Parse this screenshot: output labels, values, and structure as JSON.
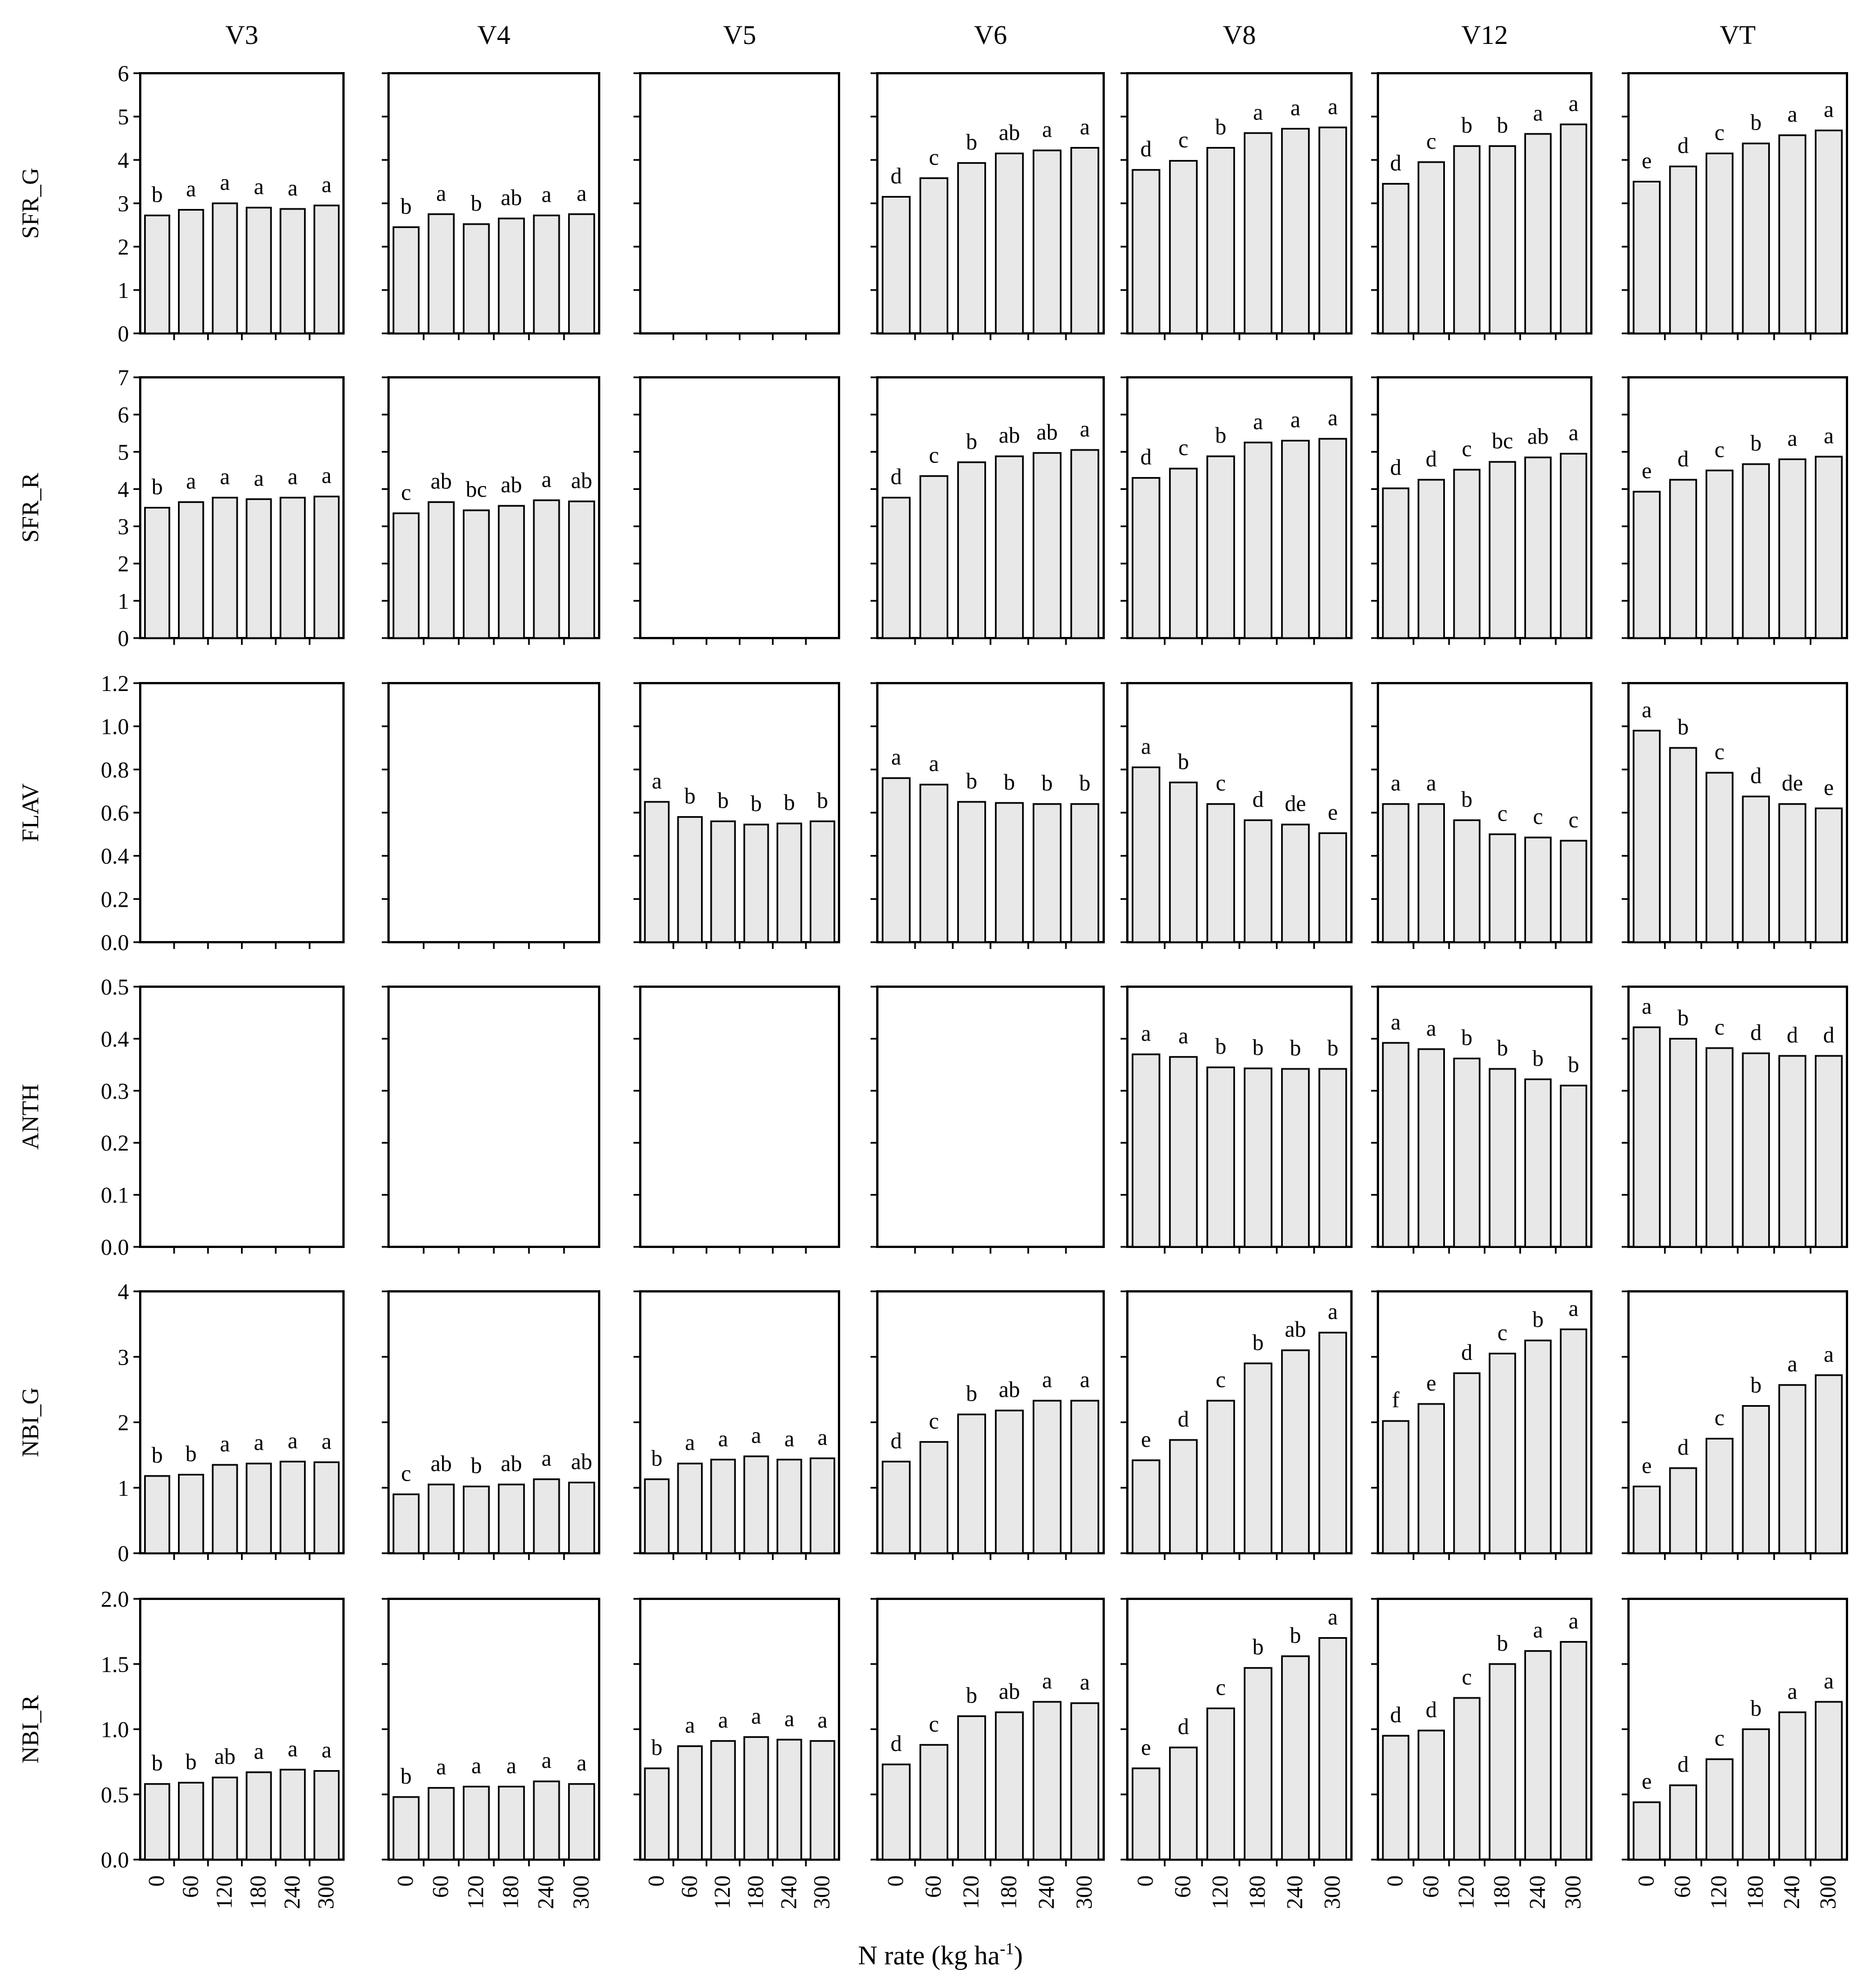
{
  "chart_data": {
    "type": "bar",
    "layout": "small-multiples grid (rows = indices, columns = growth stages)",
    "columns": [
      "V3",
      "V4",
      "V5",
      "V6",
      "V8",
      "V12",
      "VT"
    ],
    "categories": [
      "0",
      "60",
      "120",
      "180",
      "240",
      "300"
    ],
    "xlabel": "N rate (kg ha",
    "xlabel_sup": "-1",
    "xlabel_suffix": ")",
    "bar_color": "#e8e8e8",
    "rows": [
      {
        "label": "SFR_G",
        "ylim": [
          0,
          6
        ],
        "yticks": [
          "0",
          "1",
          "2",
          "3",
          "4",
          "5",
          "6"
        ],
        "panels": [
          {
            "values": [
              2.72,
              2.85,
              3.0,
              2.9,
              2.87,
              2.95
            ],
            "letters": [
              "b",
              "a",
              "a",
              "a",
              "a",
              "a"
            ]
          },
          {
            "values": [
              2.45,
              2.75,
              2.52,
              2.65,
              2.72,
              2.75
            ],
            "letters": [
              "b",
              "a",
              "b",
              "ab",
              "a",
              "a"
            ]
          },
          null,
          {
            "values": [
              3.15,
              3.58,
              3.93,
              4.15,
              4.22,
              4.28
            ],
            "letters": [
              "d",
              "c",
              "b",
              "ab",
              "a",
              "a"
            ]
          },
          {
            "values": [
              3.77,
              3.98,
              4.28,
              4.62,
              4.72,
              4.75
            ],
            "letters": [
              "d",
              "c",
              "b",
              "a",
              "a",
              "a"
            ]
          },
          {
            "values": [
              3.45,
              3.95,
              4.32,
              4.32,
              4.6,
              4.82
            ],
            "letters": [
              "d",
              "c",
              "b",
              "b",
              "a",
              "a"
            ]
          },
          {
            "values": [
              3.5,
              3.85,
              4.15,
              4.38,
              4.57,
              4.68
            ],
            "letters": [
              "e",
              "d",
              "c",
              "b",
              "a",
              "a"
            ]
          }
        ]
      },
      {
        "label": "SFR_R",
        "ylim": [
          0,
          7
        ],
        "yticks": [
          "0",
          "1",
          "2",
          "3",
          "4",
          "5",
          "6",
          "7"
        ],
        "panels": [
          {
            "values": [
              3.5,
              3.65,
              3.77,
              3.73,
              3.77,
              3.8
            ],
            "letters": [
              "b",
              "a",
              "a",
              "a",
              "a",
              "a"
            ]
          },
          {
            "values": [
              3.35,
              3.65,
              3.43,
              3.55,
              3.7,
              3.67
            ],
            "letters": [
              "c",
              "ab",
              "bc",
              "ab",
              "a",
              "ab"
            ]
          },
          null,
          {
            "values": [
              3.77,
              4.35,
              4.72,
              4.88,
              4.97,
              5.05
            ],
            "letters": [
              "d",
              "c",
              "b",
              "ab",
              "ab",
              "a"
            ]
          },
          {
            "values": [
              4.3,
              4.55,
              4.88,
              5.25,
              5.3,
              5.35
            ],
            "letters": [
              "d",
              "c",
              "b",
              "a",
              "a",
              "a"
            ]
          },
          {
            "values": [
              4.02,
              4.25,
              4.52,
              4.73,
              4.85,
              4.95
            ],
            "letters": [
              "d",
              "d",
              "c",
              "bc",
              "ab",
              "a"
            ]
          },
          {
            "values": [
              3.93,
              4.25,
              4.5,
              4.67,
              4.8,
              4.87
            ],
            "letters": [
              "e",
              "d",
              "c",
              "b",
              "a",
              "a"
            ]
          }
        ]
      },
      {
        "label": "FLAV",
        "ylim": [
          0,
          1.2
        ],
        "yticks": [
          "0.0",
          "0.2",
          "0.4",
          "0.6",
          "0.8",
          "1.0",
          "1.2"
        ],
        "panels": [
          null,
          null,
          {
            "values": [
              0.65,
              0.58,
              0.56,
              0.545,
              0.55,
              0.56
            ],
            "letters": [
              "a",
              "b",
              "b",
              "b",
              "b",
              "b"
            ]
          },
          {
            "values": [
              0.76,
              0.73,
              0.65,
              0.645,
              0.64,
              0.64
            ],
            "letters": [
              "a",
              "a",
              "b",
              "b",
              "b",
              "b"
            ]
          },
          {
            "values": [
              0.81,
              0.74,
              0.64,
              0.565,
              0.545,
              0.505
            ],
            "letters": [
              "a",
              "b",
              "c",
              "d",
              "de",
              "e"
            ]
          },
          {
            "values": [
              0.64,
              0.64,
              0.565,
              0.5,
              0.485,
              0.47
            ],
            "letters": [
              "a",
              "a",
              "b",
              "c",
              "c",
              "c"
            ]
          },
          {
            "values": [
              0.98,
              0.9,
              0.785,
              0.675,
              0.64,
              0.62
            ],
            "letters": [
              "a",
              "b",
              "c",
              "d",
              "de",
              "e"
            ]
          }
        ]
      },
      {
        "label": "ANTH",
        "ylim": [
          0,
          0.5
        ],
        "yticks": [
          "0.0",
          "0.1",
          "0.2",
          "0.3",
          "0.4",
          "0.5"
        ],
        "panels": [
          null,
          null,
          null,
          null,
          {
            "values": [
              0.37,
              0.365,
              0.345,
              0.343,
              0.342,
              0.342
            ],
            "letters": [
              "a",
              "a",
              "b",
              "b",
              "b",
              "b"
            ]
          },
          {
            "values": [
              0.392,
              0.38,
              0.362,
              0.342,
              0.322,
              0.31
            ],
            "letters": [
              "a",
              "a",
              "b",
              "b",
              "b",
              "b"
            ]
          },
          {
            "values": [
              0.422,
              0.4,
              0.382,
              0.372,
              0.367,
              0.367
            ],
            "letters": [
              "a",
              "b",
              "c",
              "d",
              "d",
              "d"
            ]
          }
        ]
      },
      {
        "label": "NBI_G",
        "ylim": [
          0,
          4
        ],
        "yticks": [
          "0",
          "1",
          "2",
          "3",
          "4"
        ],
        "panels": [
          {
            "values": [
              1.18,
              1.2,
              1.35,
              1.37,
              1.4,
              1.39
            ],
            "letters": [
              "b",
              "b",
              "a",
              "a",
              "a",
              "a"
            ]
          },
          {
            "values": [
              0.9,
              1.05,
              1.02,
              1.05,
              1.13,
              1.08
            ],
            "letters": [
              "c",
              "ab",
              "b",
              "ab",
              "a",
              "ab"
            ]
          },
          {
            "values": [
              1.13,
              1.37,
              1.43,
              1.48,
              1.43,
              1.45
            ],
            "letters": [
              "b",
              "a",
              "a",
              "a",
              "a",
              "a"
            ]
          },
          {
            "values": [
              1.4,
              1.7,
              2.12,
              2.18,
              2.33,
              2.33
            ],
            "letters": [
              "d",
              "c",
              "b",
              "ab",
              "a",
              "a"
            ]
          },
          {
            "values": [
              1.42,
              1.73,
              2.33,
              2.9,
              3.1,
              3.37
            ],
            "letters": [
              "e",
              "d",
              "c",
              "b",
              "ab",
              "a"
            ]
          },
          {
            "values": [
              2.02,
              2.28,
              2.75,
              3.05,
              3.25,
              3.42
            ],
            "letters": [
              "f",
              "e",
              "d",
              "c",
              "b",
              "a"
            ]
          },
          {
            "values": [
              1.02,
              1.3,
              1.75,
              2.25,
              2.57,
              2.72
            ],
            "letters": [
              "e",
              "d",
              "c",
              "b",
              "a",
              "a"
            ]
          }
        ]
      },
      {
        "label": "NBI_R",
        "ylim": [
          0,
          2
        ],
        "yticks": [
          "0.0",
          "0.5",
          "1.0",
          "1.5",
          "2.0"
        ],
        "panels": [
          {
            "values": [
              0.58,
              0.59,
              0.63,
              0.67,
              0.69,
              0.68
            ],
            "letters": [
              "b",
              "b",
              "ab",
              "a",
              "a",
              "a"
            ]
          },
          {
            "values": [
              0.48,
              0.55,
              0.56,
              0.56,
              0.6,
              0.58
            ],
            "letters": [
              "b",
              "a",
              "a",
              "a",
              "a",
              "a"
            ]
          },
          {
            "values": [
              0.7,
              0.87,
              0.91,
              0.94,
              0.92,
              0.91
            ],
            "letters": [
              "b",
              "a",
              "a",
              "a",
              "a",
              "a"
            ]
          },
          {
            "values": [
              0.73,
              0.88,
              1.1,
              1.13,
              1.21,
              1.2
            ],
            "letters": [
              "d",
              "c",
              "b",
              "ab",
              "a",
              "a"
            ]
          },
          {
            "values": [
              0.7,
              0.86,
              1.16,
              1.47,
              1.56,
              1.7
            ],
            "letters": [
              "e",
              "d",
              "c",
              "b",
              "b",
              "a"
            ]
          },
          {
            "values": [
              0.95,
              0.99,
              1.24,
              1.5,
              1.6,
              1.67
            ],
            "letters": [
              "d",
              "d",
              "c",
              "b",
              "a",
              "a"
            ]
          },
          {
            "values": [
              0.44,
              0.57,
              0.77,
              1.0,
              1.13,
              1.21
            ],
            "letters": [
              "e",
              "d",
              "c",
              "b",
              "a",
              "a"
            ]
          }
        ]
      }
    ]
  }
}
